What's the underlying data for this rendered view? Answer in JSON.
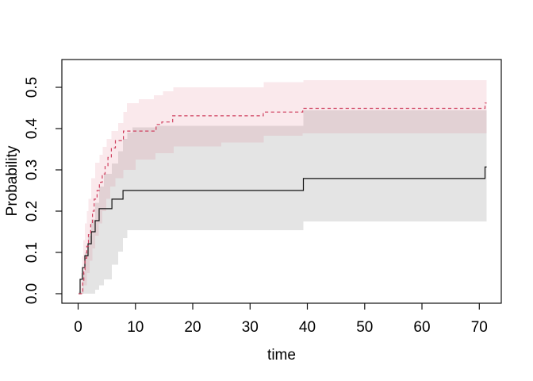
{
  "chart_data": {
    "type": "line",
    "subtype": "step-function-cumulative-incidence-with-confidence-bands",
    "title": "",
    "xlabel": "time",
    "ylabel": "Probability",
    "x_axis": {
      "range": [
        -2.84,
        73.84
      ],
      "ticks": [
        0,
        10,
        20,
        30,
        40,
        50,
        60,
        70
      ],
      "tick_labels": [
        "0",
        "10",
        "20",
        "30",
        "40",
        "50",
        "60",
        "70"
      ]
    },
    "y_axis": {
      "range": [
        -0.0231,
        0.5673
      ],
      "ticks": [
        0.0,
        0.1,
        0.2,
        0.3,
        0.4,
        0.5
      ],
      "tick_labels": [
        "0.0",
        "0.1",
        "0.2",
        "0.3",
        "0.4",
        "0.5"
      ]
    },
    "grid": "off",
    "legend": "none",
    "end_time": 71.3,
    "series": [
      {
        "name": "group-1-estimate",
        "line_style": "solid",
        "color": "#111111",
        "points": [
          [
            0.1,
            0
          ],
          [
            0.35,
            0.035
          ],
          [
            0.76,
            0.063
          ],
          [
            1.18,
            0.092
          ],
          [
            1.73,
            0.121
          ],
          [
            2.29,
            0.15
          ],
          [
            2.98,
            0.177
          ],
          [
            3.67,
            0.206
          ],
          [
            5.9,
            0.229
          ],
          [
            7.83,
            0.25
          ],
          [
            39.3,
            0.279
          ],
          [
            71.0,
            0.307
          ]
        ]
      },
      {
        "name": "group-2-estimate",
        "line_style": "dashed",
        "color": "#cf3f5e",
        "points": [
          [
            0.1,
            0
          ],
          [
            0.8,
            0.029
          ],
          [
            1.0,
            0.058
          ],
          [
            1.2,
            0.086
          ],
          [
            1.5,
            0.115
          ],
          [
            1.8,
            0.143
          ],
          [
            2.2,
            0.171
          ],
          [
            2.5,
            0.2
          ],
          [
            2.8,
            0.229
          ],
          [
            3.3,
            0.25
          ],
          [
            3.7,
            0.27
          ],
          [
            4.2,
            0.29
          ],
          [
            4.7,
            0.31
          ],
          [
            5.2,
            0.33
          ],
          [
            5.8,
            0.353
          ],
          [
            6.5,
            0.371
          ],
          [
            7.9,
            0.394
          ],
          [
            13.6,
            0.41
          ],
          [
            14.6,
            0.416
          ],
          [
            16.5,
            0.431
          ],
          [
            32.3,
            0.44
          ],
          [
            39.2,
            0.449
          ],
          [
            71.0,
            0.462
          ]
        ]
      }
    ],
    "bands": [
      {
        "name": "group-1-confidence-band",
        "fill": "#e4e4e4",
        "upper": [
          [
            0.1,
            0.005
          ],
          [
            0.76,
            0.05
          ],
          [
            1.18,
            0.1
          ],
          [
            1.73,
            0.14
          ],
          [
            2.29,
            0.18
          ],
          [
            2.98,
            0.22
          ],
          [
            3.67,
            0.26
          ],
          [
            4.5,
            0.29
          ],
          [
            5.9,
            0.315
          ],
          [
            7.0,
            0.345
          ],
          [
            7.83,
            0.375
          ],
          [
            8.6,
            0.39
          ],
          [
            9.5,
            0.403
          ],
          [
            13.7,
            0.407
          ],
          [
            39.3,
            0.444
          ]
        ],
        "lower": [
          [
            0.1,
            0
          ],
          [
            2.98,
            0.01
          ],
          [
            3.67,
            0.02
          ],
          [
            4.5,
            0.035
          ],
          [
            5.9,
            0.07
          ],
          [
            7.0,
            0.102
          ],
          [
            7.83,
            0.135
          ],
          [
            8.6,
            0.154
          ],
          [
            39.3,
            0.175
          ]
        ]
      },
      {
        "name": "group-2-confidence-band",
        "fill": "rgba(205,55,85,0.11)",
        "upper": [
          [
            0.3,
            0.02
          ],
          [
            0.5,
            0.05
          ],
          [
            0.7,
            0.09
          ],
          [
            0.9,
            0.13
          ],
          [
            1.2,
            0.17
          ],
          [
            1.5,
            0.2
          ],
          [
            1.8,
            0.23
          ],
          [
            2.3,
            0.28
          ],
          [
            3.0,
            0.317
          ],
          [
            3.7,
            0.337
          ],
          [
            4.3,
            0.356
          ],
          [
            5.0,
            0.375
          ],
          [
            5.8,
            0.394
          ],
          [
            7.0,
            0.413
          ],
          [
            7.9,
            0.44
          ],
          [
            8.5,
            0.462
          ],
          [
            10.6,
            0.471
          ],
          [
            13.2,
            0.481
          ],
          [
            14.8,
            0.49
          ],
          [
            16.6,
            0.5
          ],
          [
            32.4,
            0.5125
          ],
          [
            39.3,
            0.5175
          ]
        ],
        "lower": [
          [
            0.3,
            0
          ],
          [
            1.0,
            0.02
          ],
          [
            1.5,
            0.05
          ],
          [
            2.0,
            0.08
          ],
          [
            2.5,
            0.11
          ],
          [
            3.0,
            0.14
          ],
          [
            3.6,
            0.17
          ],
          [
            4.2,
            0.2
          ],
          [
            4.9,
            0.23
          ],
          [
            5.6,
            0.26
          ],
          [
            6.5,
            0.28
          ],
          [
            7.9,
            0.3
          ],
          [
            10.0,
            0.325
          ],
          [
            13.5,
            0.34
          ],
          [
            16.7,
            0.357
          ],
          [
            25.0,
            0.366
          ],
          [
            32.4,
            0.383
          ],
          [
            39.2,
            0.388
          ]
        ]
      }
    ]
  }
}
